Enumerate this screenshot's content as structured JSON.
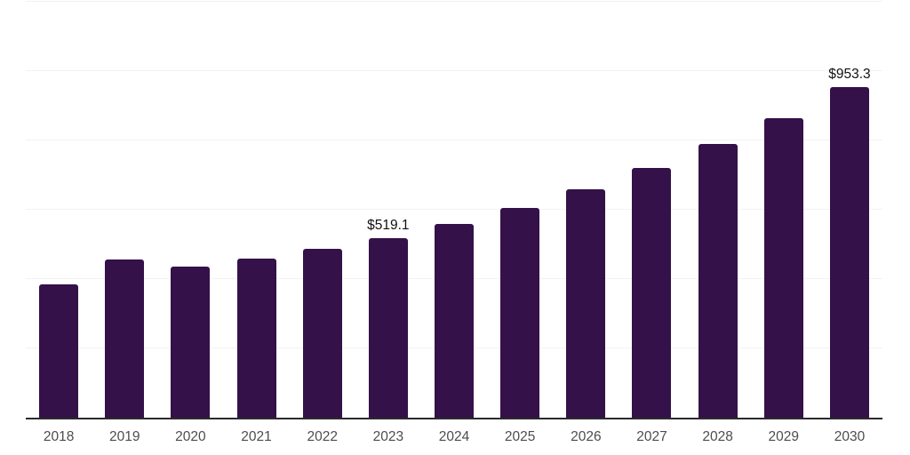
{
  "chart_data": {
    "type": "bar",
    "title": "",
    "xlabel": "",
    "ylabel": "",
    "categories": [
      "2018",
      "2019",
      "2020",
      "2021",
      "2022",
      "2023",
      "2024",
      "2025",
      "2026",
      "2027",
      "2028",
      "2029",
      "2030"
    ],
    "values": [
      386,
      456,
      437,
      458,
      487,
      519.1,
      560,
      606,
      660,
      721,
      790,
      864,
      953.3
    ],
    "point_labels": [
      "",
      "",
      "",
      "",
      "",
      "$519.1",
      "",
      "",
      "",
      "",
      "",
      "",
      "$953.3"
    ],
    "ylim": [
      0,
      1200
    ],
    "grid_step": 200,
    "grid": "horizontal-only",
    "y_tick_labels_visible": false,
    "legend": false,
    "colors": {
      "bar": "#341149",
      "axis_line": "#2b2b2b",
      "gridline": "#f2f2f2",
      "x_tick_label": "#4d4d4d",
      "value_label": "#111111",
      "background": "#ffffff"
    }
  }
}
